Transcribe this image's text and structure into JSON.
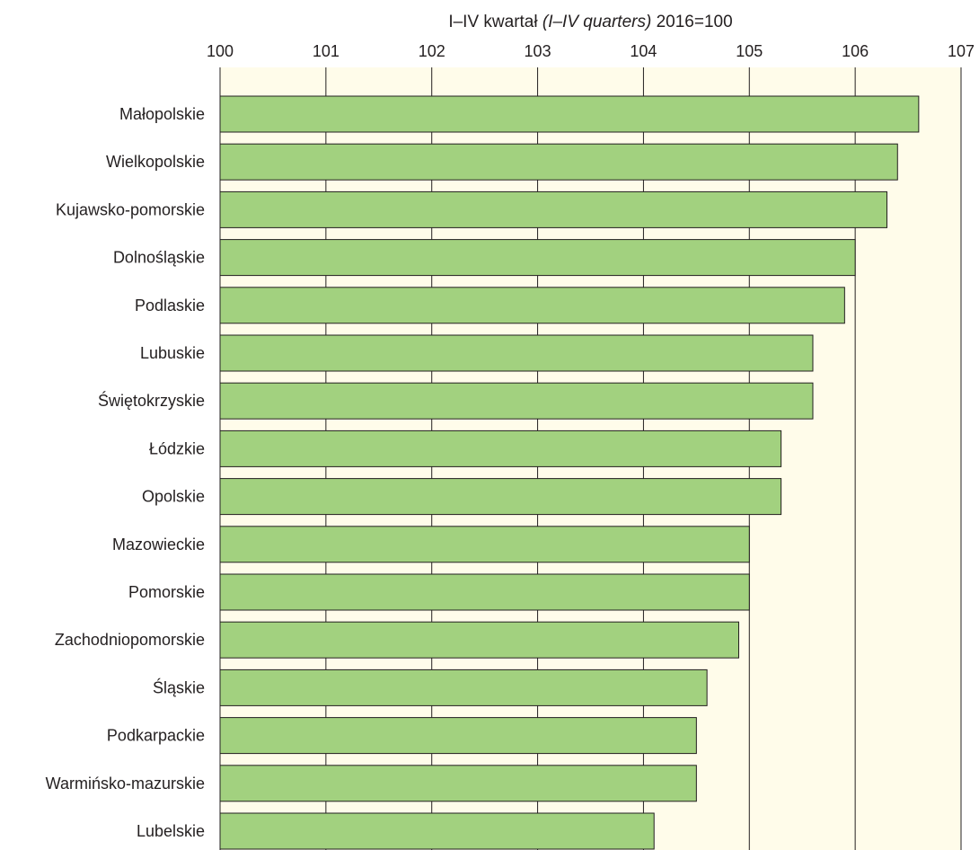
{
  "chart_data": {
    "type": "bar",
    "orientation": "horizontal",
    "title": {
      "part1": "I–IV kwartał",
      "part2": "(I–IV quarters)",
      "part3": "2016=100"
    },
    "xlim": [
      100,
      107
    ],
    "xticks": [
      "100",
      "101",
      "102",
      "103",
      "104",
      "105",
      "106",
      "107"
    ],
    "grid": true,
    "colors": {
      "bar": "#a2d17f",
      "bar_edge": "#231f20",
      "plot_bg": "#fffcea",
      "grid": "#231f20"
    },
    "categories": [
      "Małopolskie",
      "Wielkopolskie",
      "Kujawsko-pomorskie",
      "Dolnośląskie",
      "Podlaskie",
      "Lubuskie",
      "Świętokrzyskie",
      "Łódzkie",
      "Opolskie",
      "Mazowieckie",
      "Pomorskie",
      "Zachodniopomorskie",
      "Śląskie",
      "Podkarpackie",
      "Warmińsko-mazurskie",
      "Lubelskie"
    ],
    "values": [
      106.6,
      106.4,
      106.3,
      106.0,
      105.9,
      105.6,
      105.6,
      105.3,
      105.3,
      105.0,
      105.0,
      104.9,
      104.6,
      104.5,
      104.5,
      104.1
    ]
  }
}
